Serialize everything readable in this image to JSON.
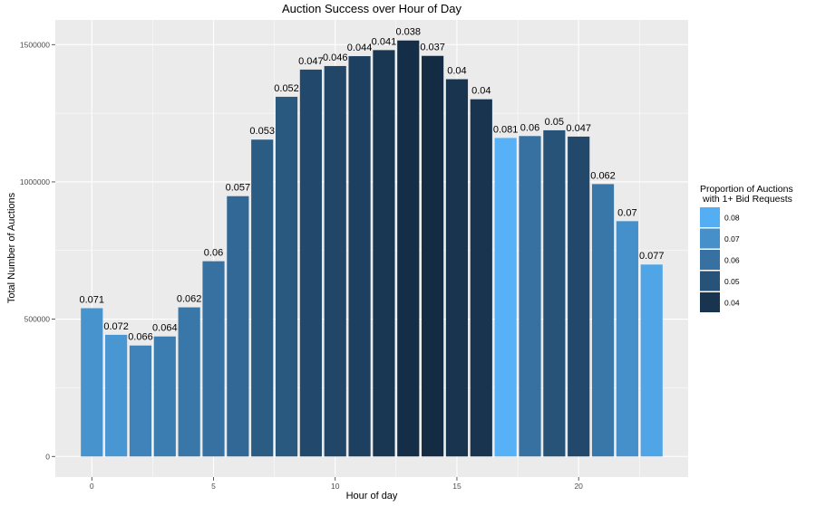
{
  "chart_data": {
    "type": "bar",
    "title": "Auction Success over Hour of Day",
    "xlabel": "Hour of day",
    "ylabel": "Total Number of Auctions",
    "x": [
      0,
      1,
      2,
      3,
      4,
      5,
      6,
      7,
      8,
      9,
      10,
      11,
      12,
      13,
      14,
      15,
      16,
      17,
      18,
      19,
      20,
      21,
      22,
      23
    ],
    "values": [
      540000,
      443000,
      404000,
      437000,
      543000,
      711000,
      948000,
      1154000,
      1310000,
      1409000,
      1422000,
      1458000,
      1480000,
      1515000,
      1459000,
      1374000,
      1301000,
      1160000,
      1167000,
      1188000,
      1165000,
      992000,
      857000,
      699000
    ],
    "labels": [
      "0.071",
      "0.072",
      "0.066",
      "0.064",
      "0.062",
      "0.06",
      "0.057",
      "0.053",
      "0.052",
      "0.047",
      "0.046",
      "0.044",
      "0.041",
      "0.038",
      "0.037",
      "0.04",
      "0.04",
      "0.081",
      "0.06",
      "0.05",
      "0.047",
      "0.062",
      "0.07",
      "0.077"
    ],
    "proportions": [
      0.071,
      0.072,
      0.066,
      0.064,
      0.062,
      0.06,
      0.057,
      0.053,
      0.052,
      0.047,
      0.046,
      0.044,
      0.041,
      0.038,
      0.037,
      0.04,
      0.04,
      0.081,
      0.06,
      0.05,
      0.047,
      0.062,
      0.07,
      0.077
    ],
    "xlim": [
      -1.5,
      24.5
    ],
    "ylim": [
      -75000,
      1590000
    ],
    "x_ticks": [
      0,
      5,
      10,
      15,
      20
    ],
    "x_tick_labels": [
      "0",
      "5",
      "10",
      "15",
      "20"
    ],
    "y_ticks": [
      0,
      500000,
      1000000,
      1500000
    ],
    "y_tick_labels": [
      "0",
      "500000",
      "1000000",
      "1500000"
    ],
    "grid": true,
    "legend": {
      "title_lines": [
        "Proportion of Auctions",
        "with 1+ Bid Requests"
      ],
      "position": "right",
      "entries": [
        "0.08",
        "0.07",
        "0.06",
        "0.05",
        "0.04"
      ],
      "entry_values": [
        0.08,
        0.07,
        0.06,
        0.05,
        0.04
      ]
    },
    "color_scale": {
      "low_value": 0.037,
      "high_value": 0.081,
      "low_color": "#132b43",
      "high_color": "#56b1f7"
    },
    "panel_background": "#ebebeb",
    "grid_color": "#ffffff"
  }
}
